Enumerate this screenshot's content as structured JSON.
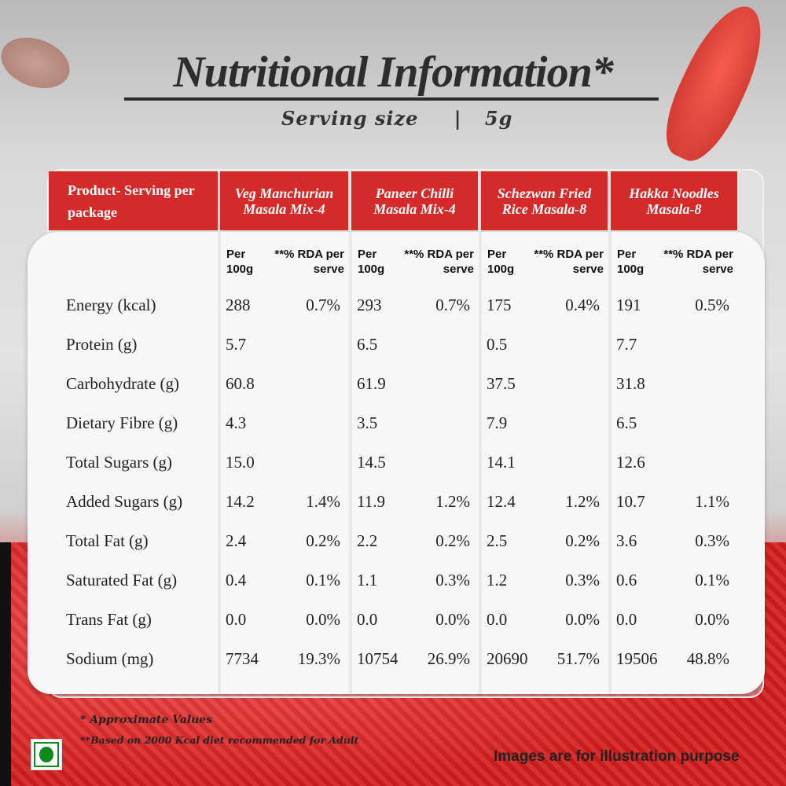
{
  "title": "Nutritional Information*",
  "serving": {
    "label": "Serving size",
    "separator": "|",
    "value": "5g"
  },
  "header": {
    "label_col": "Product- Serving per package",
    "products": [
      "Veg Manchurian Masala Mix-4",
      "Paneer Chilli Masala Mix-4",
      "Schezwan Fried Rice Masala-8",
      "Hakka Noodles Masala-8"
    ]
  },
  "subheader": {
    "per": "Per 100g",
    "rda": "**% RDA per serve"
  },
  "rows": [
    {
      "name": "Energy (kcal)",
      "v": [
        "288",
        "0.7%",
        "293",
        "0.7%",
        "175",
        "0.4%",
        "191",
        "0.5%"
      ]
    },
    {
      "name": "Protein (g)",
      "v": [
        "5.7",
        "",
        "6.5",
        "",
        "0.5",
        "",
        "7.7",
        ""
      ]
    },
    {
      "name": "Carbohydrate (g)",
      "v": [
        "60.8",
        "",
        "61.9",
        "",
        "37.5",
        "",
        "31.8",
        ""
      ]
    },
    {
      "name": "Dietary Fibre (g)",
      "v": [
        "4.3",
        "",
        "3.5",
        "",
        "7.9",
        "",
        "6.5",
        ""
      ]
    },
    {
      "name": "Total Sugars (g)",
      "v": [
        "15.0",
        "",
        "14.5",
        "",
        "14.1",
        "",
        "12.6",
        ""
      ]
    },
    {
      "name": "Added Sugars (g)",
      "v": [
        "14.2",
        "1.4%",
        "11.9",
        "1.2%",
        "12.4",
        "1.2%",
        "10.7",
        "1.1%"
      ]
    },
    {
      "name": "Total Fat (g)",
      "v": [
        "2.4",
        "0.2%",
        "2.2",
        "0.2%",
        "2.5",
        "0.2%",
        "3.6",
        "0.3%"
      ]
    },
    {
      "name": "Saturated Fat (g)",
      "v": [
        "0.4",
        "0.1%",
        "1.1",
        "0.3%",
        "1.2",
        "0.3%",
        "0.6",
        "0.1%"
      ]
    },
    {
      "name": "Trans Fat (g)",
      "v": [
        "0.0",
        "0.0%",
        "0.0",
        "0.0%",
        "0.0",
        "0.0%",
        "0.0",
        "0.0%"
      ]
    },
    {
      "name": "Sodium (mg)",
      "v": [
        "7734",
        "19.3%",
        "10754",
        "26.9%",
        "20690",
        "51.7%",
        "19506",
        "48.8%"
      ]
    }
  ],
  "footnotes": {
    "approx": "* Approximate Values",
    "rda": "**Based on 2000 Kcal diet recommended for Adult",
    "illustration": "Images are for illustration purpose"
  },
  "colors": {
    "header_red": "#d42a2a",
    "veg_green": "#0a8a1a"
  }
}
